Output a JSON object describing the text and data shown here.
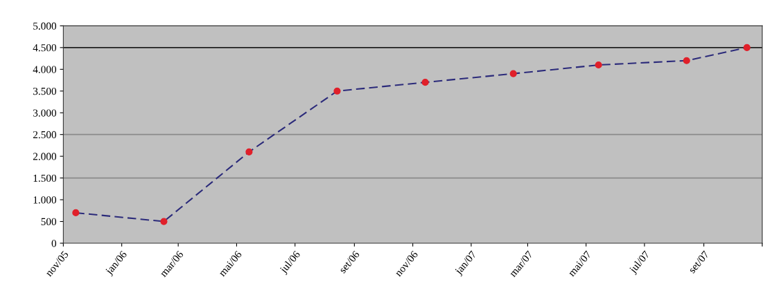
{
  "chart_data": {
    "type": "line",
    "x": [
      "2005-11-14",
      "2006-02-14",
      "2006-05-14",
      "2006-08-14",
      "2006-11-14",
      "2007-02-14",
      "2007-05-14",
      "2007-08-14",
      "2007-10-16"
    ],
    "series": [
      {
        "color": "#2b2a7a",
        "marker": "none",
        "line_style": "dashed",
        "values": [
          700,
          500,
          2100,
          3500,
          3700,
          3900,
          4100,
          4200,
          4500
        ]
      },
      {
        "type": "scatter",
        "color": "#e0202a",
        "marker": "circle",
        "values": [
          700,
          500,
          2100,
          3500,
          3700,
          3900,
          4100,
          4200,
          4500
        ]
      }
    ],
    "xlim": [
      "2005-11-01",
      "2007-11-01"
    ],
    "xticks": [
      {
        "value": "2005-11-01",
        "label": "nov/05"
      },
      {
        "value": "2006-01-01",
        "label": "jan/06"
      },
      {
        "value": "2006-03-01",
        "label": "mar/06"
      },
      {
        "value": "2006-05-01",
        "label": "mai/06"
      },
      {
        "value": "2006-07-01",
        "label": "jul/06"
      },
      {
        "value": "2006-09-01",
        "label": "set/06"
      },
      {
        "value": "2006-11-01",
        "label": "nov/06"
      },
      {
        "value": "2007-01-01",
        "label": "jan/07"
      },
      {
        "value": "2007-03-01",
        "label": "mar/07"
      },
      {
        "value": "2007-05-01",
        "label": "mai/07"
      },
      {
        "value": "2007-07-01",
        "label": "jul/07"
      },
      {
        "value": "2007-09-01",
        "label": "set/07"
      },
      {
        "value": "2007-11-01",
        "label": null
      }
    ],
    "ylim": [
      0,
      5000
    ],
    "yticks": [
      {
        "value": 0,
        "label": "0"
      },
      {
        "value": 500,
        "label": "500"
      },
      {
        "value": 1000,
        "label": "1.000"
      },
      {
        "value": 1500,
        "label": "1.500"
      },
      {
        "value": 2000,
        "label": "2.000"
      },
      {
        "value": 2500,
        "label": "2.500"
      },
      {
        "value": 3000,
        "label": "3.000"
      },
      {
        "value": 3500,
        "label": "3.500"
      },
      {
        "value": 4000,
        "label": "4.000"
      },
      {
        "value": 4500,
        "label": "4.500"
      },
      {
        "value": 5000,
        "label": "5.000"
      }
    ],
    "ref_lines": [
      {
        "axis": "y",
        "value": 1500,
        "color": "#8a8a8a"
      },
      {
        "axis": "y",
        "value": 2500,
        "color": "#8a8a8a"
      },
      {
        "axis": "y",
        "value": 4500,
        "color": "#202020"
      }
    ],
    "grid": false,
    "legend": false
  }
}
